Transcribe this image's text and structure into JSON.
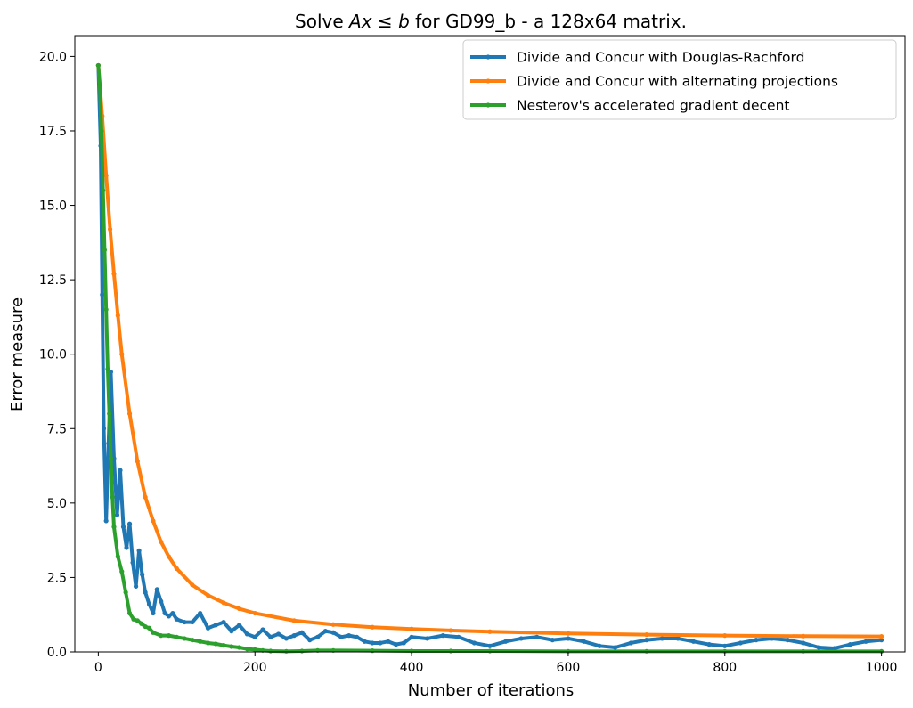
{
  "chart_data": {
    "type": "line",
    "title": {
      "prefix": "Solve ",
      "math_var1": "Ax",
      "math_op": " ≤ ",
      "math_var2": "b",
      "suffix": " for GD99_b - a 128x64 matrix."
    },
    "xlabel": "Number of iterations",
    "ylabel": "Error measure",
    "xlim": [
      -30,
      1030
    ],
    "ylim": [
      0,
      20.7
    ],
    "xticks": [
      0,
      200,
      400,
      600,
      800,
      1000
    ],
    "xtick_labels": [
      "0",
      "200",
      "400",
      "600",
      "800",
      "1000"
    ],
    "yticks": [
      0,
      2.5,
      5,
      7.5,
      10,
      12.5,
      15,
      17.5,
      20
    ],
    "ytick_labels": [
      "0.0",
      "2.5",
      "5.0",
      "7.5",
      "10.0",
      "12.5",
      "15.0",
      "17.5",
      "20.0"
    ],
    "grid": false,
    "legend_position": "top-right",
    "series": [
      {
        "name": "Divide and Concur with Douglas-Rachford",
        "color": "#1f77b4",
        "x": [
          0,
          3,
          5,
          7,
          10,
          13,
          16,
          20,
          24,
          28,
          32,
          36,
          40,
          44,
          48,
          52,
          56,
          60,
          65,
          70,
          75,
          80,
          85,
          90,
          95,
          100,
          110,
          120,
          130,
          140,
          150,
          160,
          170,
          180,
          190,
          200,
          210,
          220,
          230,
          240,
          250,
          260,
          270,
          280,
          290,
          300,
          310,
          320,
          330,
          340,
          350,
          360,
          370,
          380,
          390,
          400,
          420,
          440,
          460,
          480,
          500,
          520,
          540,
          560,
          580,
          600,
          620,
          640,
          660,
          680,
          700,
          720,
          740,
          760,
          780,
          800,
          820,
          840,
          860,
          880,
          900,
          920,
          940,
          960,
          980,
          1000
        ],
        "y": [
          19.7,
          17.0,
          12.0,
          7.5,
          4.4,
          7.0,
          9.4,
          6.5,
          4.6,
          6.1,
          4.2,
          3.5,
          4.3,
          3.0,
          2.2,
          3.4,
          2.6,
          2.0,
          1.6,
          1.3,
          2.1,
          1.7,
          1.3,
          1.2,
          1.3,
          1.1,
          1.0,
          1.0,
          1.3,
          0.8,
          0.9,
          1.0,
          0.7,
          0.9,
          0.6,
          0.5,
          0.75,
          0.5,
          0.6,
          0.45,
          0.55,
          0.65,
          0.4,
          0.5,
          0.7,
          0.65,
          0.5,
          0.55,
          0.5,
          0.35,
          0.3,
          0.3,
          0.35,
          0.25,
          0.3,
          0.5,
          0.45,
          0.55,
          0.5,
          0.3,
          0.2,
          0.35,
          0.45,
          0.5,
          0.4,
          0.45,
          0.35,
          0.2,
          0.15,
          0.3,
          0.4,
          0.45,
          0.45,
          0.35,
          0.25,
          0.2,
          0.3,
          0.4,
          0.45,
          0.4,
          0.3,
          0.15,
          0.12,
          0.25,
          0.35,
          0.4
        ]
      },
      {
        "name": "Divide and Concur with alternating projections",
        "color": "#ff7f0e",
        "x": [
          0,
          5,
          10,
          15,
          20,
          25,
          30,
          40,
          50,
          60,
          70,
          80,
          90,
          100,
          120,
          140,
          160,
          180,
          200,
          250,
          300,
          350,
          400,
          450,
          500,
          600,
          700,
          800,
          900,
          1000
        ],
        "y": [
          19.7,
          18.0,
          16.0,
          14.2,
          12.7,
          11.3,
          10.0,
          8.0,
          6.4,
          5.2,
          4.4,
          3.7,
          3.2,
          2.8,
          2.25,
          1.9,
          1.65,
          1.45,
          1.3,
          1.05,
          0.92,
          0.83,
          0.77,
          0.72,
          0.68,
          0.62,
          0.58,
          0.55,
          0.53,
          0.52
        ]
      },
      {
        "name": "Nesterov's accelerated gradient decent",
        "color": "#2ca02c",
        "x": [
          0,
          2,
          4,
          6,
          8,
          10,
          12,
          14,
          16,
          18,
          20,
          25,
          30,
          35,
          40,
          45,
          50,
          55,
          60,
          65,
          70,
          80,
          90,
          100,
          110,
          120,
          130,
          140,
          150,
          160,
          170,
          180,
          190,
          200,
          210,
          220,
          240,
          260,
          280,
          300,
          350,
          400,
          450,
          500,
          600,
          700,
          800,
          900,
          1000
        ],
        "y": [
          19.7,
          19.0,
          17.5,
          15.5,
          13.5,
          11.5,
          9.5,
          8.0,
          6.5,
          5.2,
          4.2,
          3.2,
          2.7,
          2.0,
          1.3,
          1.1,
          1.05,
          0.95,
          0.85,
          0.8,
          0.65,
          0.55,
          0.55,
          0.5,
          0.45,
          0.4,
          0.35,
          0.3,
          0.27,
          0.22,
          0.18,
          0.15,
          0.1,
          0.08,
          0.05,
          0.03,
          0.02,
          0.03,
          0.05,
          0.05,
          0.04,
          0.03,
          0.03,
          0.03,
          0.02,
          0.02,
          0.02,
          0.02,
          0.02
        ]
      }
    ]
  }
}
